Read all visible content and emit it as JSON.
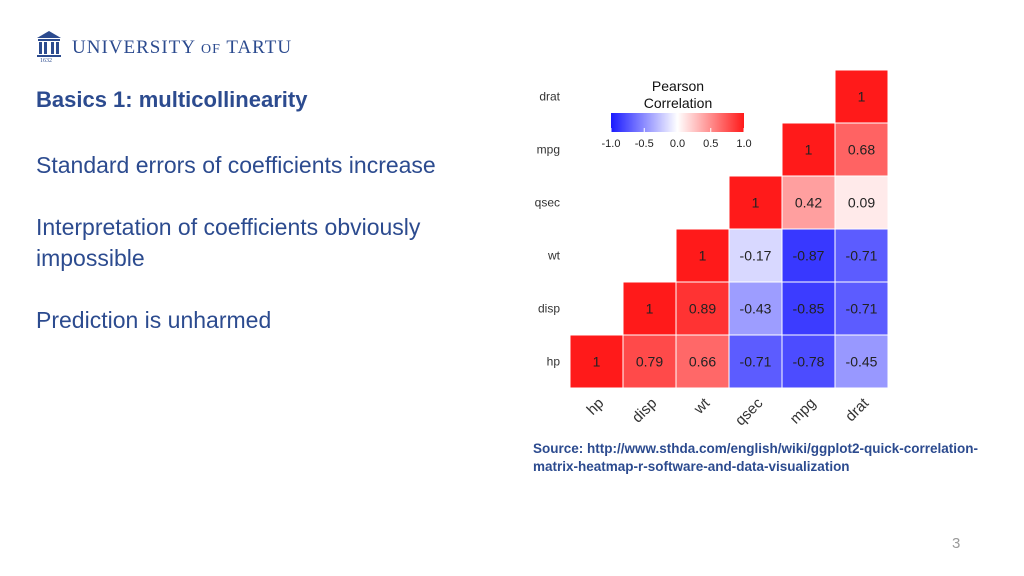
{
  "header": {
    "university_name_main": "UNIVERSITY",
    "university_name_of": "OF",
    "university_name_end": "TARTU",
    "logo_year": "1632"
  },
  "slide": {
    "title": "Basics 1: multicollinearity",
    "bullets": [
      "Standard errors of coefficients increase",
      "Interpretation of coefficients obviously impossible",
      "Prediction is unharmed"
    ],
    "source": "Source: http://www.sthda.com/english/wiki/ggplot2-quick-correlation-matrix-heatmap-r-software-and-data-visualization",
    "page_number": "3"
  },
  "chart_data": {
    "type": "heatmap",
    "variables": [
      "hp",
      "disp",
      "wt",
      "qsec",
      "mpg",
      "drat"
    ],
    "cells": [
      {
        "x": "hp",
        "y": "hp",
        "value": 1
      },
      {
        "x": "disp",
        "y": "hp",
        "value": 0.79
      },
      {
        "x": "wt",
        "y": "hp",
        "value": 0.66
      },
      {
        "x": "qsec",
        "y": "hp",
        "value": -0.71
      },
      {
        "x": "mpg",
        "y": "hp",
        "value": -0.78
      },
      {
        "x": "drat",
        "y": "hp",
        "value": -0.45
      },
      {
        "x": "disp",
        "y": "disp",
        "value": 1
      },
      {
        "x": "wt",
        "y": "disp",
        "value": 0.89
      },
      {
        "x": "qsec",
        "y": "disp",
        "value": -0.43
      },
      {
        "x": "mpg",
        "y": "disp",
        "value": -0.85
      },
      {
        "x": "drat",
        "y": "disp",
        "value": -0.71
      },
      {
        "x": "wt",
        "y": "wt",
        "value": 1
      },
      {
        "x": "qsec",
        "y": "wt",
        "value": -0.17
      },
      {
        "x": "mpg",
        "y": "wt",
        "value": -0.87
      },
      {
        "x": "drat",
        "y": "wt",
        "value": -0.71
      },
      {
        "x": "qsec",
        "y": "qsec",
        "value": 1
      },
      {
        "x": "mpg",
        "y": "qsec",
        "value": 0.42
      },
      {
        "x": "drat",
        "y": "qsec",
        "value": 0.09
      },
      {
        "x": "mpg",
        "y": "mpg",
        "value": 1
      },
      {
        "x": "drat",
        "y": "mpg",
        "value": 0.68
      },
      {
        "x": "drat",
        "y": "drat",
        "value": 1
      }
    ],
    "legend": {
      "title": [
        "Pearson",
        "Correlation"
      ],
      "ticks": [
        "-1.0",
        "-0.5",
        "0.0",
        "0.5",
        "1.0"
      ],
      "range": [
        -1,
        1
      ],
      "placement": "top-left",
      "colors": {
        "low": "#1a1aff",
        "mid": "#ffffff",
        "high": "#ff1a1a"
      }
    },
    "grid": false
  }
}
